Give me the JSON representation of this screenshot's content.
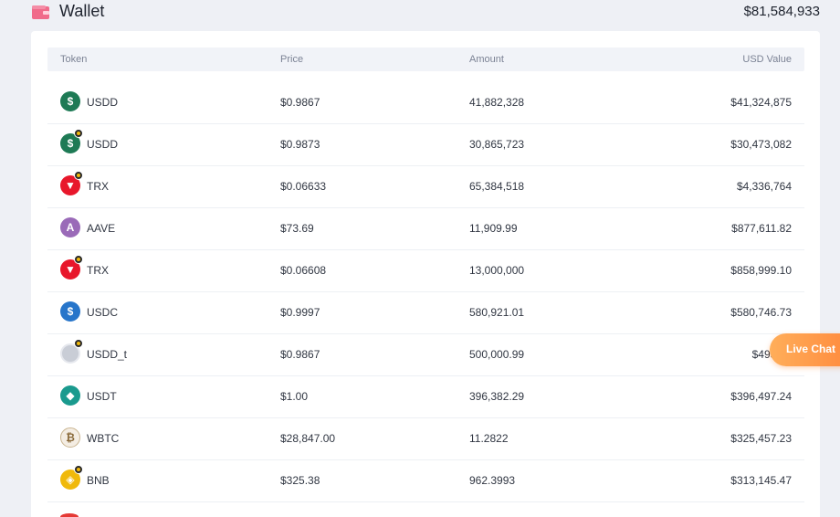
{
  "header": {
    "title": "Wallet",
    "total": "$81,584,933",
    "icon": "wallet-icon",
    "icon_color": "#f06b8a"
  },
  "table": {
    "columns": {
      "token": "Token",
      "price": "Price",
      "amount": "Amount",
      "usd_value": "USD Value"
    },
    "rows": [
      {
        "token": "USDD",
        "price": "$0.9867",
        "amount": "41,882,328",
        "usd_value": "$41,324,875",
        "icon": "usdd-icon",
        "color": "#1e7a55",
        "glyph": "$",
        "chain_badge": false
      },
      {
        "token": "USDD",
        "price": "$0.9873",
        "amount": "30,865,723",
        "usd_value": "$30,473,082",
        "icon": "usdd-icon",
        "color": "#1e7a55",
        "glyph": "$",
        "chain_badge": true
      },
      {
        "token": "TRX",
        "price": "$0.06633",
        "amount": "65,384,518",
        "usd_value": "$4,336,764",
        "icon": "trx-icon",
        "color": "#e8172b",
        "glyph": "▼",
        "chain_badge": true
      },
      {
        "token": "AAVE",
        "price": "$73.69",
        "amount": "11,909.99",
        "usd_value": "$877,611.82",
        "icon": "aave-icon",
        "color": "#9a6ab8",
        "glyph": "A",
        "chain_badge": false
      },
      {
        "token": "TRX",
        "price": "$0.06608",
        "amount": "13,000,000",
        "usd_value": "$858,999.10",
        "icon": "trx-icon",
        "color": "#e8172b",
        "glyph": "▼",
        "chain_badge": true
      },
      {
        "token": "USDC",
        "price": "$0.9997",
        "amount": "580,921.01",
        "usd_value": "$580,746.73",
        "icon": "usdc-icon",
        "color": "#2775ca",
        "glyph": "$",
        "chain_badge": false
      },
      {
        "token": "USDD_t",
        "price": "$0.9867",
        "amount": "500,000.99",
        "usd_value": "$493,34",
        "icon": "usdd-t-icon",
        "color": "#c9cdd6",
        "glyph": "",
        "chain_badge": true
      },
      {
        "token": "USDT",
        "price": "$1.00",
        "amount": "396,382.29",
        "usd_value": "$396,497.24",
        "icon": "usdt-icon",
        "color": "#1a9a8e",
        "glyph": "◆",
        "chain_badge": false
      },
      {
        "token": "WBTC",
        "price": "$28,847.00",
        "amount": "11.2822",
        "usd_value": "$325,457.23",
        "icon": "wbtc-icon",
        "color": "#f4ede3",
        "glyph": "₿",
        "chain_badge": false
      },
      {
        "token": "BNB",
        "price": "$325.38",
        "amount": "962.3993",
        "usd_value": "$313,145.47",
        "icon": "bnb-icon",
        "color": "#f0b90b",
        "glyph": "◈",
        "chain_badge": true
      }
    ]
  },
  "live_chat": {
    "label": "Live Chat",
    "color": "#ff9a4a"
  }
}
